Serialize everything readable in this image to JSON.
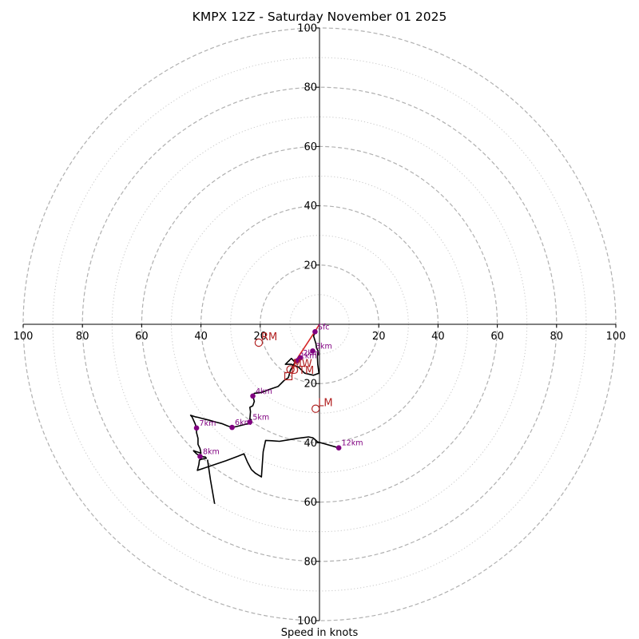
{
  "chart_data": {
    "type": "hodograph",
    "title": "KMPX 12Z - Saturday November 01 2025",
    "xlabel": "Speed in knots",
    "ylabel": "",
    "xlim": [
      -100,
      100
    ],
    "ylim": [
      -100,
      100
    ],
    "dashed_rings": [
      20,
      40,
      60,
      80,
      100
    ],
    "dotted_rings": [
      10,
      30,
      50,
      70,
      90
    ],
    "x_ticks": [
      -100,
      -80,
      -60,
      -40,
      -20,
      20,
      40,
      60,
      80,
      100
    ],
    "x_tick_labels": [
      "100",
      "80",
      "60",
      "40",
      "20",
      "20",
      "40",
      "60",
      "80",
      "100"
    ],
    "y_ticks": [
      100,
      80,
      60,
      40,
      20,
      -20,
      -40,
      -60,
      -80,
      -100
    ],
    "y_tick_labels": [
      "100",
      "80",
      "60",
      "40",
      "20",
      "20",
      "40",
      "60",
      "80",
      "100"
    ],
    "colors": {
      "profile_line": "#000000",
      "surface_segment": "#d62728",
      "height_marker": "#800080",
      "storm_motion": "#b22222",
      "grid": "#b0b0b0"
    },
    "hodograph_trace": [
      [
        -1.5,
        -2.5
      ],
      [
        -2,
        -4
      ],
      [
        -1.2,
        -6.5
      ],
      [
        -1,
        -8
      ],
      [
        -0.5,
        -9
      ],
      [
        -0.7,
        -11
      ],
      [
        -0.6,
        -13.5
      ],
      [
        -0.2,
        -16.5
      ],
      [
        -2,
        -17.2
      ],
      [
        -5,
        -16.5
      ],
      [
        -7,
        -14.5
      ],
      [
        -9.5,
        -13.5
      ],
      [
        -11.5,
        -13.5
      ],
      [
        -9.5,
        -11.5
      ],
      [
        -8.3,
        -12.8
      ],
      [
        -9.8,
        -15.5
      ],
      [
        -10.5,
        -18
      ],
      [
        -12,
        -19
      ],
      [
        -14,
        -21
      ],
      [
        -17,
        -22
      ],
      [
        -19.5,
        -23
      ],
      [
        -22,
        -23.3
      ],
      [
        -22.5,
        -24.2
      ],
      [
        -22,
        -26
      ],
      [
        -22.5,
        -27.5
      ],
      [
        -23.5,
        -28
      ],
      [
        -23.3,
        -29.5
      ],
      [
        -23.5,
        -32
      ],
      [
        -23,
        -32.2
      ],
      [
        -24,
        -33.5
      ],
      [
        -26,
        -34
      ],
      [
        -28,
        -34.5
      ],
      [
        -29.5,
        -34.8
      ],
      [
        -31,
        -34.3
      ],
      [
        -33,
        -33.5
      ],
      [
        -35,
        -33
      ],
      [
        -37.5,
        -32.3
      ],
      [
        -39.5,
        -31.8
      ],
      [
        -41,
        -31.4
      ],
      [
        -42,
        -31.2
      ],
      [
        -43.5,
        -30.7
      ],
      [
        -43,
        -31.3
      ],
      [
        -42,
        -33.5
      ],
      [
        -41.5,
        -35
      ],
      [
        -41.5,
        -36.5
      ],
      [
        -41,
        -38.5
      ],
      [
        -41,
        -40.5
      ],
      [
        -40.3,
        -42
      ],
      [
        -40,
        -43.5
      ],
      [
        -41.5,
        -43
      ],
      [
        -42.5,
        -42.7
      ],
      [
        -41.5,
        -43.7
      ],
      [
        -40.5,
        -44.4
      ],
      [
        -39.3,
        -44.7
      ],
      [
        -38.5,
        -44.8
      ],
      [
        -38.2,
        -45.2
      ],
      [
        -39.7,
        -45.5
      ],
      [
        -40.5,
        -45.8
      ],
      [
        -40.7,
        -47.3
      ],
      [
        -41.2,
        -49.3
      ],
      [
        -36.5,
        -47.7
      ],
      [
        -31.5,
        -46
      ],
      [
        -27.5,
        -44.5
      ],
      [
        -25.5,
        -43.7
      ],
      [
        -24.3,
        -46.5
      ],
      [
        -23,
        -49
      ],
      [
        -21.6,
        -50.3
      ],
      [
        -19.6,
        -51.5
      ],
      [
        -19,
        -43
      ],
      [
        -18.2,
        -39.2
      ],
      [
        -16,
        -39.3
      ],
      [
        -13.5,
        -39.5
      ],
      [
        -10.5,
        -39
      ],
      [
        -7.5,
        -38.5
      ],
      [
        -3.7,
        -38
      ],
      [
        -2.2,
        -38.3
      ],
      [
        -0.6,
        -39.7
      ],
      [
        1.6,
        -40.3
      ],
      [
        6.5,
        -41.7
      ]
    ],
    "late_trace": [
      [
        -37.8,
        -45.7
      ],
      [
        -36.8,
        -52.5
      ],
      [
        -35.4,
        -60.6
      ]
    ],
    "surface_segment": [
      [
        0,
        0
      ],
      [
        -1.6,
        -2.5
      ],
      [
        -7.5,
        -11.5
      ],
      [
        -9,
        -15
      ]
    ],
    "height_markers": [
      {
        "label": "Sfc",
        "x": -1.5,
        "y": -2.5
      },
      {
        "label": "1km",
        "x": -7.5,
        "y": -12.3
      },
      {
        "label": "2km",
        "x": -6.5,
        "y": -11.3
      },
      {
        "label": "3km",
        "x": -2.3,
        "y": -9
      },
      {
        "label": "4km",
        "x": -22.5,
        "y": -24.2
      },
      {
        "label": "5km",
        "x": -23.5,
        "y": -33
      },
      {
        "label": "6km",
        "x": -29.5,
        "y": -34.8
      },
      {
        "label": "7km",
        "x": -41.5,
        "y": -35
      },
      {
        "label": "8km",
        "x": -40.3,
        "y": -44.6
      },
      {
        "label": "12km",
        "x": 6.5,
        "y": -41.7
      }
    ],
    "storm_motions": [
      {
        "label": "RM",
        "x": -20.5,
        "y": -6.2,
        "marker": "circle"
      },
      {
        "label": "MW",
        "x": -9.8,
        "y": -15.2,
        "marker": "circle"
      },
      {
        "label": "DTM",
        "x": -10.5,
        "y": -17.5,
        "marker": "square"
      },
      {
        "label": "LM",
        "x": -1.3,
        "y": -28.5,
        "marker": "circle"
      }
    ]
  }
}
